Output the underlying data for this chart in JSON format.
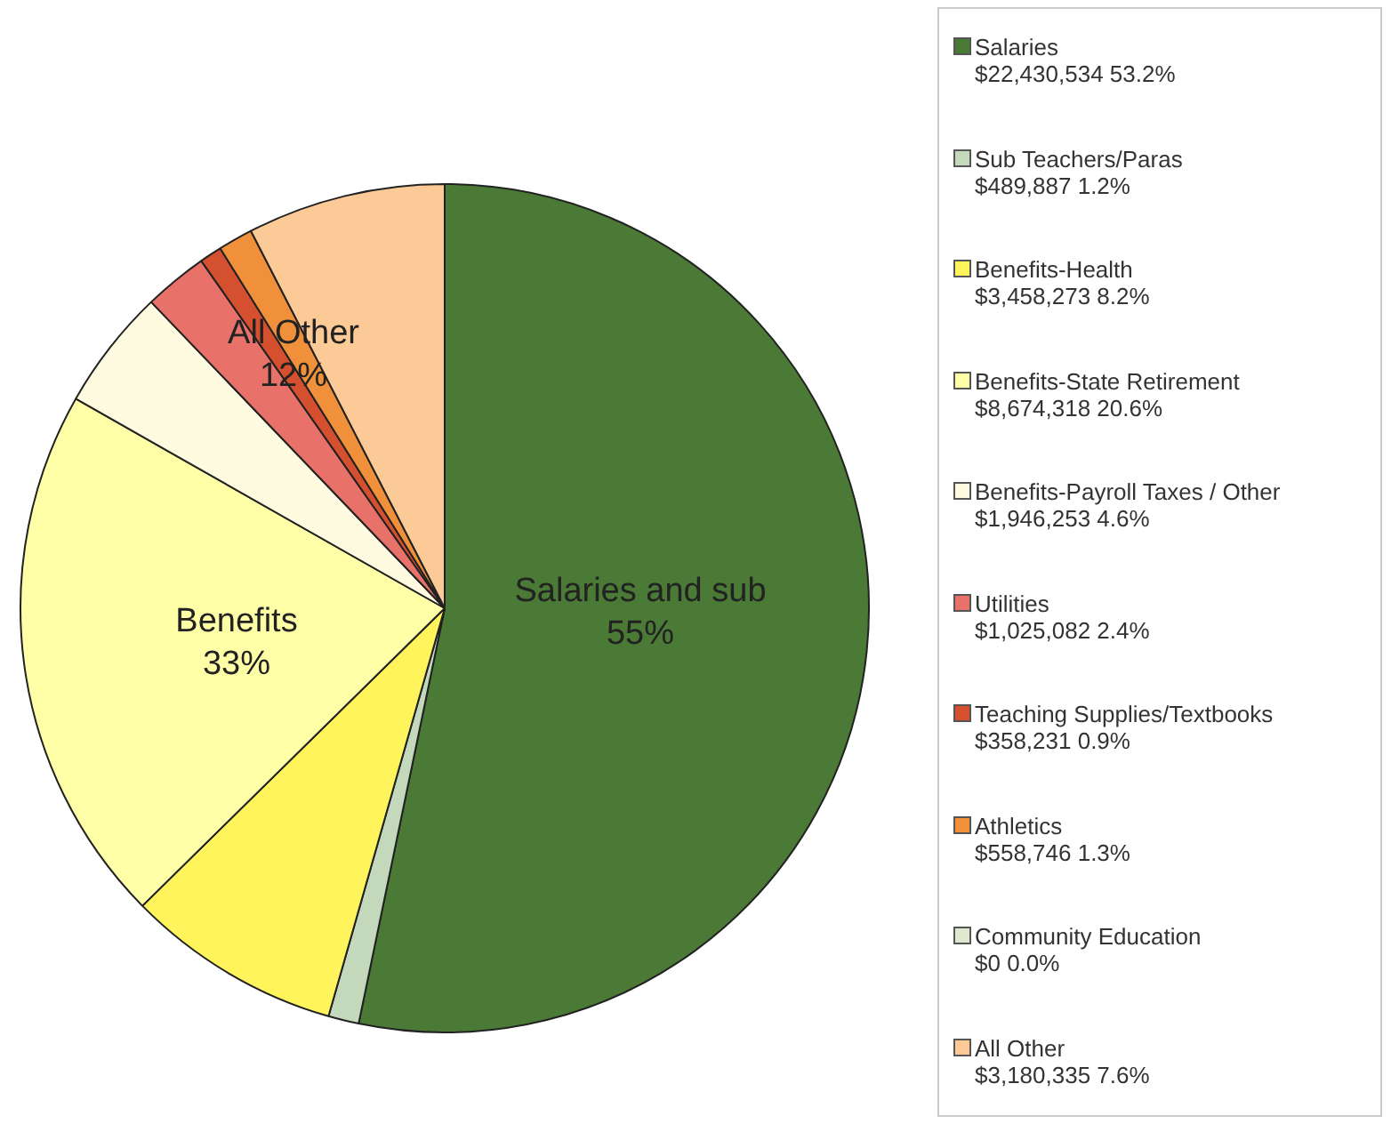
{
  "chart_data": {
    "type": "pie",
    "categories": [
      "Salaries",
      "Sub Teachers/Paras",
      "Benefits-Health",
      "Benefits-State Retirement",
      "Benefits-Payroll Taxes / Other",
      "Utilities",
      "Teaching Supplies/Textbooks",
      "Athletics",
      "Community Education",
      "All Other"
    ],
    "values": [
      22430534,
      489887,
      3458273,
      8674318,
      1946253,
      1025082,
      358231,
      558746,
      0,
      3180335
    ],
    "value_labels": [
      "$22,430,534  53.2%",
      "$489,887  1.2%",
      "$3,458,273  8.2%",
      "$8,674,318  20.6%",
      "$1,946,253  4.6%",
      "$1,025,082  2.4%",
      "$358,231  0.9%",
      "$558,746  1.3%",
      "$0 0.0%",
      "$3,180,335  7.6%"
    ],
    "colors": [
      "#4a7a36",
      "#c4d8bc",
      "#fff45c",
      "#ffffa8",
      "#fffbe0",
      "#e8726a",
      "#d4502e",
      "#f0903a",
      "#e0e8d0",
      "#fcca96"
    ],
    "legend": "right",
    "annotations": [
      "Salaries and sub 55%",
      "Benefits 33%",
      "All Other 12%"
    ]
  }
}
